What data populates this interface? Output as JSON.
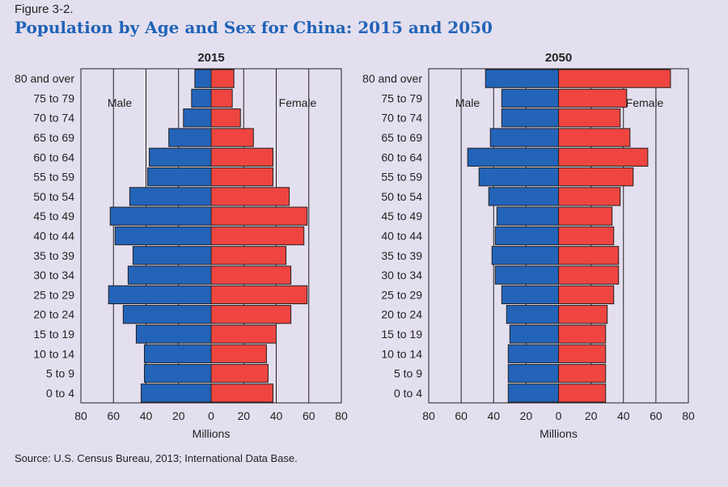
{
  "figure_label": "Figure 3-2.",
  "title": "Population by Age and Sex for China: 2015 and 2050",
  "source": "Source: U.S. Census Bureau, 2013; International Data Base.",
  "colors": {
    "male": "#2364b9",
    "female": "#ee4540",
    "title": "#1f63b8"
  },
  "chart_data": [
    {
      "type": "bar",
      "title": "2015",
      "xlabel": "Millions",
      "xlim": [
        -80,
        80
      ],
      "xticks": [
        "80",
        "60",
        "40",
        "20",
        "0",
        "20",
        "40",
        "60",
        "80"
      ],
      "grid": true,
      "categories": [
        "80 and over",
        "75 to 79",
        "70 to 74",
        "65 to 69",
        "60 to 64",
        "55 to 59",
        "50 to 54",
        "45 to 49",
        "40 to 44",
        "35 to 39",
        "30 to 34",
        "25 to 29",
        "20 to 24",
        "15 to 19",
        "10 to 14",
        "5 to 9",
        "0 to 4"
      ],
      "series": [
        {
          "name": "Male",
          "values": [
            10,
            12,
            17,
            26,
            38,
            39,
            50,
            62,
            59,
            48,
            51,
            63,
            54,
            46,
            41,
            41,
            43
          ]
        },
        {
          "name": "Female",
          "values": [
            14,
            13,
            18,
            26,
            38,
            38,
            48,
            59,
            57,
            46,
            49,
            59,
            49,
            40,
            34,
            35,
            38
          ]
        }
      ]
    },
    {
      "type": "bar",
      "title": "2050",
      "xlabel": "Millions",
      "xlim": [
        -80,
        80
      ],
      "xticks": [
        "80",
        "60",
        "40",
        "20",
        "0",
        "20",
        "40",
        "60",
        "80"
      ],
      "grid": true,
      "categories": [
        "80 and over",
        "75 to 79",
        "70 to 74",
        "65 to 69",
        "60 to 64",
        "55 to 59",
        "50 to 54",
        "45 to 49",
        "40 to 44",
        "35 to 39",
        "30 to 34",
        "25 to 29",
        "20 to 24",
        "15 to 19",
        "10 to 14",
        "5 to 9",
        "0 to 4"
      ],
      "series": [
        {
          "name": "Male",
          "values": [
            45,
            35,
            35,
            42,
            56,
            49,
            43,
            38,
            39,
            41,
            39,
            35,
            32,
            30,
            31,
            31,
            31
          ]
        },
        {
          "name": "Female",
          "values": [
            69,
            42,
            38,
            44,
            55,
            46,
            38,
            33,
            34,
            37,
            37,
            34,
            30,
            29,
            29,
            29,
            29
          ]
        }
      ]
    }
  ]
}
